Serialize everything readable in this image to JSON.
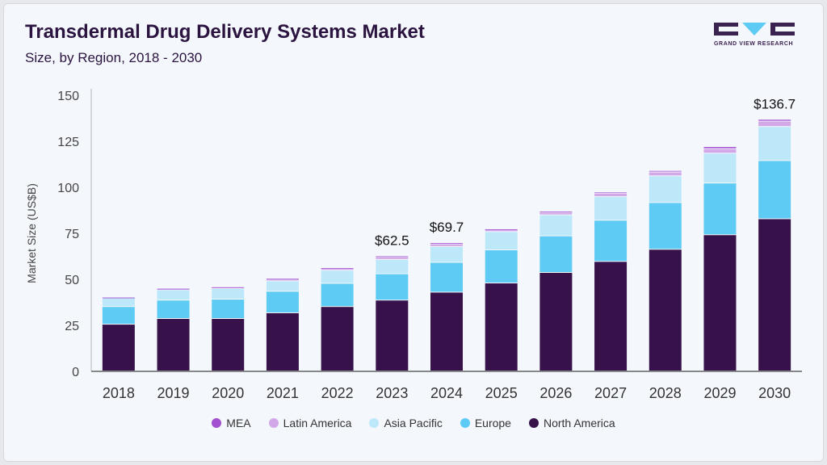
{
  "header": {
    "title": "Transdermal Drug Delivery Systems Market",
    "subtitle": "Size, by Region, 2018 - 2030",
    "logo_text": "GRAND VIEW RESEARCH"
  },
  "chart_data": {
    "type": "bar",
    "stacked": true,
    "ylabel": "Market Size (US$B)",
    "xlabel": "",
    "ylim": [
      0,
      150
    ],
    "yticks": [
      0,
      25,
      50,
      75,
      100,
      125,
      150
    ],
    "grid": false,
    "legend_position": "bottom",
    "categories": [
      "2018",
      "2019",
      "2020",
      "2021",
      "2022",
      "2023",
      "2024",
      "2025",
      "2026",
      "2027",
      "2028",
      "2029",
      "2030"
    ],
    "series": [
      {
        "name": "North America",
        "color": "#36114a",
        "values": [
          25.4,
          28.5,
          28.5,
          31.6,
          35.0,
          38.5,
          42.8,
          47.8,
          53.5,
          59.5,
          66.1,
          74.0,
          82.7
        ]
      },
      {
        "name": "Europe",
        "color": "#5ecbf5",
        "values": [
          9.6,
          10.0,
          10.5,
          11.7,
          12.6,
          14.3,
          16.2,
          18.0,
          19.9,
          22.4,
          25.4,
          28.1,
          31.6
        ]
      },
      {
        "name": "Asia Pacific",
        "color": "#bde8fa",
        "values": [
          4.8,
          5.6,
          5.8,
          5.6,
          7.1,
          7.8,
          8.6,
          9.9,
          11.4,
          12.8,
          14.5,
          16.2,
          18.5
        ]
      },
      {
        "name": "Latin America",
        "color": "#d2a8e8",
        "values": [
          0.2,
          0.6,
          0.7,
          1.0,
          1.0,
          1.3,
          1.5,
          1.2,
          1.4,
          1.8,
          2.1,
          2.5,
          2.9
        ]
      },
      {
        "name": "MEA",
        "color": "#a24fd0",
        "values": [
          0.1,
          0.2,
          0.2,
          0.4,
          0.4,
          0.6,
          0.6,
          0.3,
          0.6,
          0.7,
          0.8,
          1.1,
          1.0
        ]
      }
    ],
    "data_labels": {
      "2023": "$62.5",
      "2024": "$69.7",
      "2030": "$136.7"
    },
    "legend_order": [
      "MEA",
      "Latin America",
      "Asia Pacific",
      "Europe",
      "North America"
    ]
  }
}
